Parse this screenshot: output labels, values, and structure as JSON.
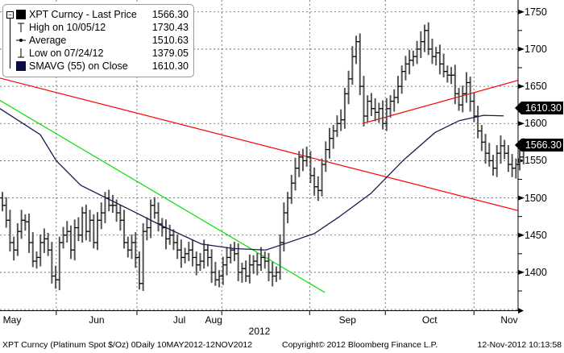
{
  "legend": {
    "rows": [
      {
        "label": "XPT Curncy - Last Price",
        "value": "1566.30",
        "icon": "filled-square-icon"
      },
      {
        "label": "High on 10/05/12",
        "value": "1730.43",
        "icon": "high-marker-icon"
      },
      {
        "label": "Average",
        "value": "1510.63",
        "icon": "average-marker-icon"
      },
      {
        "label": "Low on 07/24/12",
        "value": "1379.05",
        "icon": "low-marker-icon"
      },
      {
        "label": "SMAVG (55) on Close",
        "value": "1610.30",
        "icon": "navy-square-icon"
      }
    ]
  },
  "price_labels": {
    "sma": "1610.30",
    "last": "1566.30"
  },
  "footer": {
    "left": "XPT Curncy (Platinum Spot  $/Oz) 0Daily 10MAY2012-12NOV2012",
    "center": "Copyright© 2012 Bloomberg Finance L.P.",
    "right": "12-Nov-2012 10:13:58"
  },
  "colors": {
    "bars": "#000000",
    "sma": "#1a1a4e",
    "resistance": "#ff0000",
    "downtrend": "#00e000",
    "grid": "#555555"
  },
  "chart_data": {
    "type": "ohlc-bar",
    "title": "XPT Curncy - Last Price",
    "xlabel": "2012",
    "ylabel": "",
    "x_ticks": [
      "May",
      "Jun",
      "Jul",
      "Aug",
      "Sep",
      "Oct",
      "Nov"
    ],
    "y_ticks": [
      1400,
      1450,
      1500,
      1550,
      1600,
      1650,
      1700,
      1750
    ],
    "y_tick_labels": [
      "1400",
      "1450",
      "1500",
      "1550",
      "1600",
      "1650",
      "1700",
      "1750"
    ],
    "ylim": [
      1349,
      1766
    ],
    "xlim_bars": [
      0,
      136.2
    ],
    "month_start_bar": [
      0,
      14.8,
      36,
      58.3,
      81.4,
      101.3,
      124.6
    ],
    "grid": true,
    "legend_position": "top-left",
    "close": [
      1490,
      1470,
      1440,
      1430,
      1455,
      1470,
      1468,
      1440,
      1415,
      1420,
      1440,
      1445,
      1430,
      1395,
      1390,
      1440,
      1450,
      1455,
      1430,
      1460,
      1450,
      1480,
      1455,
      1470,
      1440,
      1470,
      1480,
      1500,
      1490,
      1490,
      1480,
      1470,
      1440,
      1430,
      1440,
      1420,
      1385,
      1455,
      1460,
      1490,
      1480,
      1465,
      1460,
      1445,
      1450,
      1440,
      1430,
      1420,
      1425,
      1430,
      1420,
      1410,
      1415,
      1430,
      1420,
      1400,
      1390,
      1395,
      1410,
      1420,
      1430,
      1425,
      1400,
      1405,
      1395,
      1410,
      1415,
      1410,
      1420,
      1415,
      1400,
      1395,
      1400,
      1440,
      1480,
      1500,
      1520,
      1540,
      1555,
      1550,
      1555,
      1530,
      1515,
      1510,
      1545,
      1565,
      1580,
      1590,
      1600,
      1605,
      1640,
      1660,
      1690,
      1710,
      1650,
      1610,
      1630,
      1620,
      1615,
      1620,
      1600,
      1620,
      1630,
      1635,
      1650,
      1670,
      1680,
      1685,
      1690,
      1700,
      1710,
      1725,
      1700,
      1690,
      1695,
      1680,
      1670,
      1665,
      1665,
      1640,
      1625,
      1640,
      1655,
      1630,
      1610,
      1590,
      1575,
      1560,
      1550,
      1540,
      1560,
      1570,
      1560,
      1545,
      1540,
      1545,
      1555,
      1566.3
    ],
    "sma55": [
      [
        0,
        1620
      ],
      [
        10.6,
        1585
      ],
      [
        14.8,
        1550
      ],
      [
        21.2,
        1517
      ],
      [
        35,
        1482
      ],
      [
        42.4,
        1463
      ],
      [
        53,
        1438
      ],
      [
        61.4,
        1432
      ],
      [
        69.9,
        1430
      ],
      [
        76.3,
        1441
      ],
      [
        82.6,
        1452
      ],
      [
        89,
        1474
      ],
      [
        97.5,
        1506
      ],
      [
        105.9,
        1550
      ],
      [
        114.4,
        1588
      ],
      [
        120.8,
        1604
      ],
      [
        127.1,
        1611
      ],
      [
        132.4,
        1610.3
      ]
    ],
    "trendlines": [
      {
        "name": "upper-red-downtrend",
        "color": "#ff0000",
        "from": [
          0,
          1661
        ],
        "to": [
          136.2,
          1483
        ]
      },
      {
        "name": "red-support",
        "color": "#ff0000",
        "from": [
          95.3,
          1600
        ],
        "to": [
          136.2,
          1658
        ]
      },
      {
        "name": "green-downtrend",
        "color": "#00e000",
        "from": [
          0,
          1631
        ],
        "to": [
          85.4,
          1373
        ]
      }
    ],
    "last_price": 1566.3,
    "high": 1730.43,
    "average": 1510.63,
    "low": 1379.05,
    "sma_last": 1610.3
  }
}
